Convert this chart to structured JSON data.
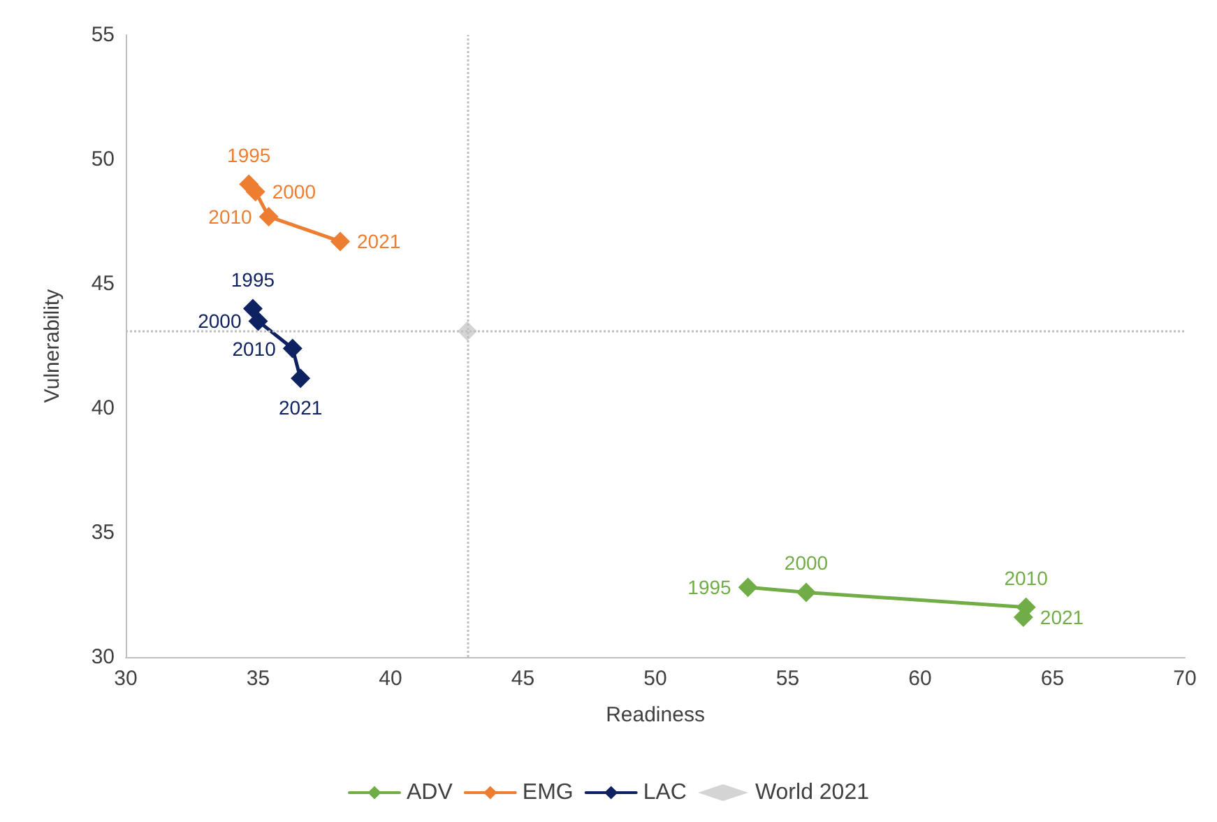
{
  "chart_data": {
    "type": "line",
    "xlabel": "Readiness",
    "ylabel": "Vulnerability",
    "xlim": [
      30,
      70
    ],
    "xticks": [
      30,
      35,
      40,
      45,
      50,
      55,
      60,
      65,
      70
    ],
    "ylim": [
      30,
      55
    ],
    "yticks": [
      30,
      35,
      40,
      45,
      50,
      55
    ],
    "grid": false,
    "legend": "bottom",
    "marker": "diamond",
    "line_style": "solid",
    "series": [
      {
        "name": "ADV",
        "color": "#70ad47",
        "x": [
          53.5,
          55.7,
          64.0,
          63.9
        ],
        "values": [
          32.8,
          32.6,
          32.0,
          31.6
        ]
      },
      {
        "name": "EMG",
        "color": "#ed7d31",
        "x": [
          34.65,
          34.9,
          35.4,
          38.1
        ],
        "values": [
          49.0,
          48.7,
          47.7,
          46.7
        ]
      },
      {
        "name": "LAC",
        "color": "#0e2161",
        "x": [
          34.8,
          35.0,
          36.3,
          36.6
        ],
        "values": [
          44.0,
          43.5,
          42.4,
          41.2
        ]
      },
      {
        "name": "World 2021",
        "type": "scatter",
        "color": "#c9c9c9",
        "x": [
          42.9
        ],
        "values": [
          43.1
        ]
      }
    ],
    "annotations": [
      {
        "text": "1995",
        "x": 53.5,
        "y": 32.8
      },
      {
        "text": "2000",
        "x": 55.7,
        "y": 32.6
      },
      {
        "text": "2010",
        "x": 64.0,
        "y": 32.0
      },
      {
        "text": "2021",
        "x": 63.9,
        "y": 31.6
      },
      {
        "text": "1995",
        "x": 34.65,
        "y": 49.0
      },
      {
        "text": "2000",
        "x": 34.9,
        "y": 48.7
      },
      {
        "text": "2010",
        "x": 35.4,
        "y": 47.7
      },
      {
        "text": "2021",
        "x": 38.1,
        "y": 46.7
      },
      {
        "text": "1995",
        "x": 34.8,
        "y": 44.0
      },
      {
        "text": "2000",
        "x": 35.0,
        "y": 43.5
      },
      {
        "text": "2010",
        "x": 36.3,
        "y": 42.4
      },
      {
        "text": "2021",
        "x": 36.6,
        "y": 41.2
      }
    ],
    "ref_lines": [
      {
        "axis": "x",
        "value": 42.9,
        "color": "#bfbfbf",
        "line_style": "dotted"
      },
      {
        "axis": "y",
        "value": 43.1,
        "color": "#bfbfbf",
        "line_style": "dotted"
      }
    ]
  }
}
